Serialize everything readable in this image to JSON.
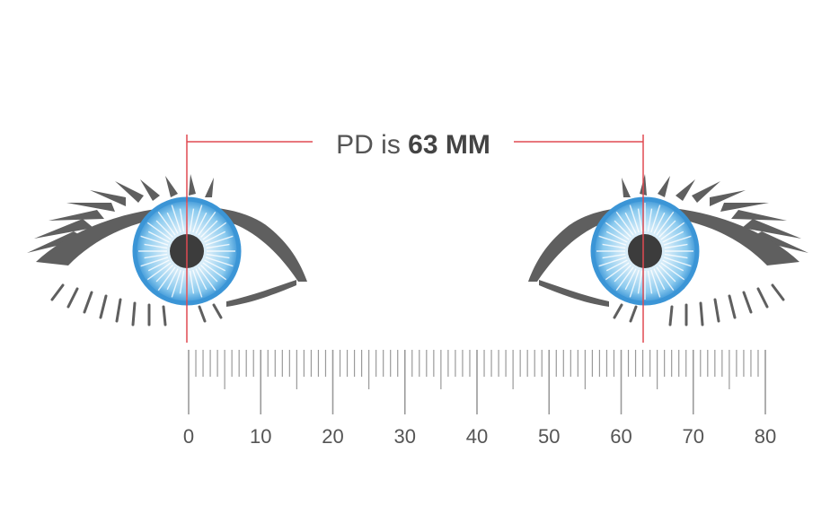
{
  "pd_label": {
    "prefix": "PD is ",
    "value": "63 MM"
  },
  "ruler": {
    "unit_min": 0,
    "unit_max": 80,
    "tick_step": 1,
    "labels": [
      "0",
      "10",
      "20",
      "30",
      "40",
      "50",
      "60",
      "70",
      "80"
    ],
    "measured_value": 63
  },
  "colors": {
    "measure_line": "#e04a52",
    "eye_outline": "#5f5f5f",
    "iris_outer": "#3b95d6",
    "iris_inner": "#9fd3f1",
    "pupil": "#3c3c3c",
    "ruler": "#9a9a9a",
    "text": "#555555"
  },
  "icons": [
    "left-eye-icon",
    "right-eye-icon"
  ]
}
